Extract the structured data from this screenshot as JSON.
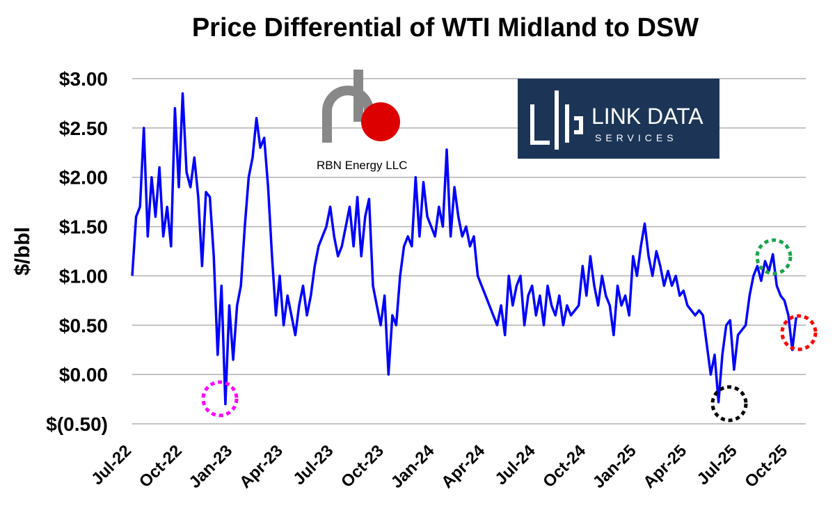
{
  "chart_data": {
    "type": "line",
    "title": "Price Differential of WTI Midland to DSW",
    "y_label": "$/bbl",
    "logos": [
      "RBN Energy LLC",
      "LINK DATA",
      "SERVICES"
    ],
    "categories": [
      "Jul-22",
      null,
      null,
      null,
      null,
      null,
      null,
      null,
      null,
      null,
      null,
      null,
      null,
      "Oct-22",
      null,
      null,
      null,
      null,
      null,
      null,
      null,
      null,
      null,
      null,
      null,
      null,
      "Jan-23",
      null,
      null,
      null,
      null,
      null,
      null,
      null,
      null,
      null,
      null,
      null,
      null,
      "Apr-23",
      null,
      null,
      null,
      null,
      null,
      null,
      null,
      null,
      null,
      null,
      null,
      null,
      "Jul-23",
      null,
      null,
      null,
      null,
      null,
      null,
      null,
      null,
      null,
      null,
      null,
      null,
      "Oct-23",
      null,
      null,
      null,
      null,
      null,
      null,
      null,
      null,
      null,
      null,
      null,
      null,
      "Jan-24",
      null,
      null,
      null,
      null,
      null,
      null,
      null,
      null,
      null,
      null,
      null,
      null,
      "Apr-24",
      null,
      null,
      null,
      null,
      null,
      null,
      null,
      null,
      null,
      null,
      null,
      null,
      "Jul-24",
      null,
      null,
      null,
      null,
      null,
      null,
      null,
      null,
      null,
      null,
      null,
      null,
      "Oct-24",
      null,
      null,
      null,
      null,
      null,
      null,
      null,
      null,
      null,
      null,
      null,
      null,
      "Jan-25",
      null,
      null,
      null,
      null,
      null,
      null,
      null,
      null,
      null,
      null,
      null,
      null,
      "Apr-25",
      null,
      null,
      null,
      null,
      null,
      null,
      null,
      null,
      null,
      null,
      null,
      null,
      "Jul-25",
      null,
      null,
      null,
      null,
      null,
      null,
      null,
      null,
      null,
      null,
      null,
      null,
      "Oct-25",
      null,
      null
    ],
    "series": [
      {
        "name": "WTI Midland to DSW",
        "color": "#0000ff",
        "values": [
          1.0,
          1.6,
          1.7,
          2.5,
          1.4,
          2.0,
          1.6,
          2.1,
          1.4,
          1.7,
          1.3,
          2.7,
          1.9,
          2.85,
          2.05,
          1.9,
          2.2,
          1.8,
          1.1,
          1.85,
          1.8,
          1.2,
          0.2,
          0.9,
          -0.3,
          0.7,
          0.15,
          0.7,
          0.9,
          1.5,
          2.0,
          2.2,
          2.6,
          2.3,
          2.4,
          1.9,
          1.2,
          0.6,
          1.0,
          0.5,
          0.8,
          0.6,
          0.4,
          0.7,
          0.9,
          0.6,
          0.8,
          1.1,
          1.3,
          1.4,
          1.5,
          1.7,
          1.4,
          1.2,
          1.3,
          1.5,
          1.7,
          1.3,
          1.8,
          1.2,
          1.6,
          1.78,
          0.9,
          0.7,
          0.5,
          0.8,
          0.0,
          0.6,
          0.5,
          1.0,
          1.3,
          1.4,
          1.3,
          2.0,
          1.4,
          1.95,
          1.6,
          1.5,
          1.4,
          1.7,
          1.5,
          2.28,
          1.4,
          1.9,
          1.6,
          1.4,
          1.5,
          1.3,
          1.4,
          1.0,
          0.9,
          0.8,
          0.7,
          0.6,
          0.5,
          0.7,
          0.4,
          1.0,
          0.7,
          0.9,
          1.0,
          0.5,
          0.8,
          0.9,
          0.6,
          0.8,
          0.5,
          0.9,
          0.7,
          0.6,
          0.8,
          0.5,
          0.7,
          0.6,
          0.65,
          0.7,
          1.1,
          0.8,
          1.2,
          0.9,
          0.7,
          1.0,
          0.8,
          0.7,
          0.4,
          0.9,
          0.7,
          0.8,
          0.6,
          1.2,
          1.0,
          1.3,
          1.53,
          1.2,
          1.0,
          1.25,
          1.1,
          0.9,
          1.05,
          0.9,
          1.0,
          0.8,
          0.85,
          0.7,
          0.65,
          0.6,
          0.65,
          0.6,
          0.3,
          0.0,
          0.2,
          -0.28,
          0.2,
          0.5,
          0.55,
          0.05,
          0.4,
          0.45,
          0.5,
          0.8,
          1.0,
          1.1,
          0.95,
          1.15,
          1.05,
          1.22,
          0.9,
          0.8,
          0.75,
          0.6,
          0.25,
          0.58
        ]
      }
    ],
    "ylim": [
      -0.5,
      3.0
    ],
    "yticks": [
      {
        "value": -0.5,
        "label": "$(0.50)"
      },
      {
        "value": 0,
        "label": "$0.00"
      },
      {
        "value": 0.5,
        "label": "$0.50"
      },
      {
        "value": 1,
        "label": "$1.00"
      },
      {
        "value": 1.5,
        "label": "$1.50"
      },
      {
        "value": 2,
        "label": "$2.00"
      },
      {
        "value": 2.5,
        "label": "$2.50"
      },
      {
        "value": 3,
        "label": "$3.00"
      }
    ],
    "grid": true
  }
}
